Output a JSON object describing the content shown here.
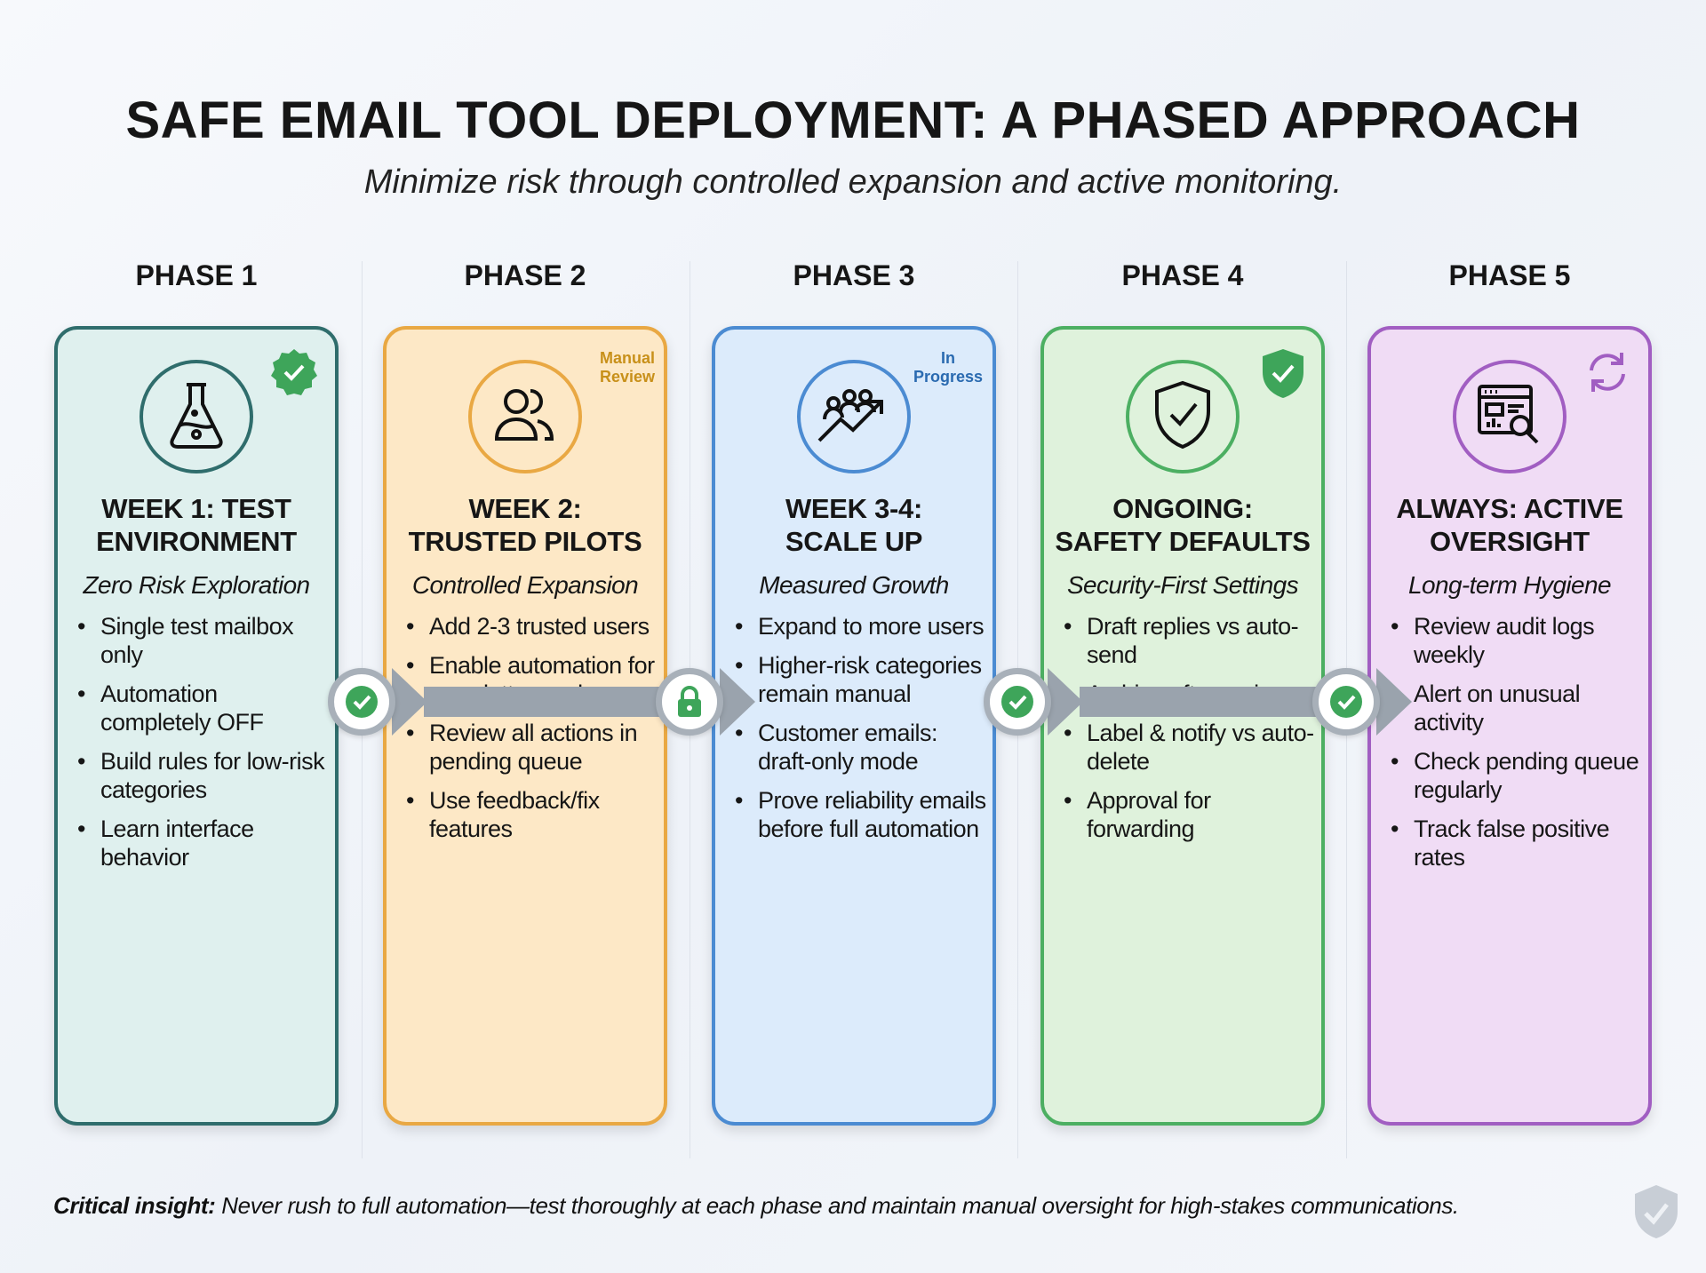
{
  "title": "SAFE EMAIL TOOL DEPLOYMENT: A PHASED APPROACH",
  "subtitle": "Minimize risk through controlled expansion and active monitoring.",
  "phases": [
    {
      "label": "PHASE 1",
      "heading1": "WEEK 1: TEST",
      "heading2": "ENVIRONMENT",
      "subheading": "Zero Risk Exploration",
      "icon": "flask-icon",
      "status_icon": "verified-badge-icon",
      "badge": "",
      "border": "#2f6d6c",
      "bg": "#dff0ee",
      "bullets": [
        "Single test mailbox only",
        "Automation completely OFF",
        "Build rules for low-risk categories",
        "Learn interface behavior"
      ]
    },
    {
      "label": "PHASE 2",
      "heading1": "WEEK 2:",
      "heading2": "TRUSTED PILOTS",
      "subheading": "Controlled Expansion",
      "icon": "users-icon",
      "status_icon": "",
      "badge": "Manual Review",
      "border": "#e9a843",
      "bg": "#fde8c6",
      "bullets": [
        "Add 2-3 trusted users",
        "Enable automation for newsletters only",
        "Review all actions in pending queue",
        "Use feedback/fix features"
      ]
    },
    {
      "label": "PHASE 3",
      "heading1": "WEEK 3-4:",
      "heading2": "SCALE UP",
      "subheading": "Measured Growth",
      "icon": "growth-chart-icon",
      "status_icon": "",
      "badge": "In Progress",
      "border": "#4b8bd2",
      "bg": "#dcebfb",
      "bullets": [
        "Expand to more users",
        "Higher-risk categories remain manual",
        "Customer emails: draft-only mode",
        "Prove reliability emails before full automation"
      ]
    },
    {
      "label": "PHASE 4",
      "heading1": "ONGOING:",
      "heading2": "SAFETY DEFAULTS",
      "subheading": "Security-First Settings",
      "icon": "shield-check-icon",
      "status_icon": "shield-check-badge-icon",
      "badge": "",
      "border": "#4caf62",
      "bg": "#dff2dc",
      "bullets": [
        "Draft replies vs auto-send",
        "Archive after review",
        "Label & notify vs auto-delete",
        "Approval for forwarding"
      ]
    },
    {
      "label": "PHASE 5",
      "heading1": "ALWAYS: ACTIVE",
      "heading2": "OVERSIGHT",
      "subheading": "Long-term Hygiene",
      "icon": "dashboard-search-icon",
      "status_icon": "refresh-icon",
      "badge": "",
      "border": "#a15ec2",
      "bg": "#f0dcf5",
      "bullets": [
        "Review audit logs weekly",
        "Alert on unusual activity",
        "Check pending queue regularly",
        "Track false positive rates"
      ]
    }
  ],
  "connectors": [
    {
      "icon": "check-icon"
    },
    {
      "icon": "lock-icon"
    },
    {
      "icon": "check-icon"
    },
    {
      "icon": "check-icon"
    }
  ],
  "colors": {
    "badge_manual": "#c8901a",
    "badge_progress": "#2a6ab0",
    "status_green": "#3ea55a",
    "connector_gray": "#9aa3ad"
  },
  "footer": {
    "lead": "Critical insight:",
    "text": " Never rush to full automation—test thoroughly at each phase and maintain manual oversight for high-stakes communications."
  }
}
